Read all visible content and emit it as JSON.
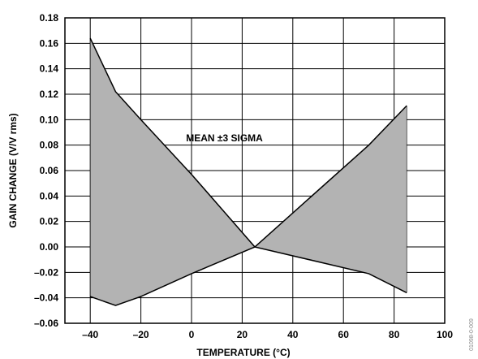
{
  "chart_data": {
    "type": "area",
    "xlabel": "TEMPERATURE (°C)",
    "ylabel": "GAIN CHANGE (V/V rms)",
    "xlim": [
      -50,
      100
    ],
    "ylim": [
      -0.06,
      0.18
    ],
    "x_ticks": [
      "–40",
      "–20",
      "0",
      "20",
      "40",
      "60",
      "80",
      "100"
    ],
    "x_tick_values": [
      -40,
      -20,
      0,
      20,
      40,
      60,
      80,
      100
    ],
    "y_ticks": [
      "0.18",
      "0.16",
      "0.14",
      "0.12",
      "0.10",
      "0.08",
      "0.06",
      "0.04",
      "0.02",
      "0.00",
      "–0.02",
      "–0.04",
      "–0.06"
    ],
    "y_tick_values": [
      0.18,
      0.16,
      0.14,
      0.12,
      0.1,
      0.08,
      0.06,
      0.04,
      0.02,
      0.0,
      -0.02,
      -0.04,
      -0.06
    ],
    "grid": true,
    "annotation": "MEAN ±3 SIGMA",
    "series": [
      {
        "x": [
          -40,
          -30,
          -20,
          0,
          25,
          70,
          85
        ],
        "values": [
          0.164,
          0.122,
          0.1,
          0.057,
          0.0,
          0.08,
          0.111
        ]
      },
      {
        "x": [
          -40,
          -30,
          -20,
          0,
          25,
          70,
          85
        ],
        "values": [
          -0.039,
          -0.046,
          -0.039,
          -0.021,
          0.0,
          -0.021,
          -0.036
        ]
      }
    ],
    "fill_color": "#b3b3b3",
    "line_color": "#000000"
  },
  "side_id": "01098-0-009"
}
